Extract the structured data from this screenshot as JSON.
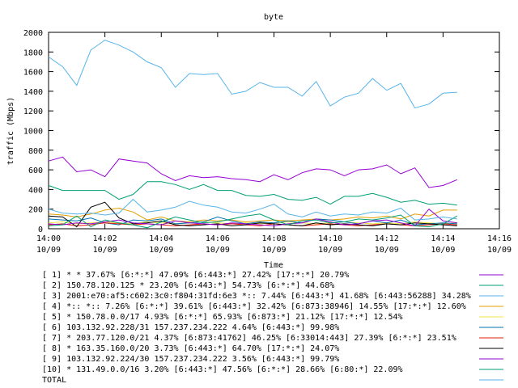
{
  "chart_data": {
    "type": "line",
    "title": "byte",
    "xlabel": "Time",
    "ylabel": "traffic (Mbps)",
    "ylim": [
      0,
      2000
    ],
    "yticks": [
      "0",
      "200",
      "400",
      "600",
      "800",
      "1000",
      "1200",
      "1400",
      "1600",
      "1800",
      "2000"
    ],
    "xlim": [
      "14:00",
      "14:16"
    ],
    "xticks": [
      {
        "time": "14:00",
        "date": "10/09"
      },
      {
        "time": "14:02",
        "date": "10/09"
      },
      {
        "time": "14:04",
        "date": "10/09"
      },
      {
        "time": "14:06",
        "date": "10/09"
      },
      {
        "time": "14:08",
        "date": "10/09"
      },
      {
        "time": "14:10",
        "date": "10/09"
      },
      {
        "time": "14:12",
        "date": "10/09"
      },
      {
        "time": "14:14",
        "date": "10/09"
      },
      {
        "time": "14:16",
        "date": "10/09"
      }
    ],
    "grid": false,
    "legend_position": "bottom",
    "x": [
      "14:00",
      "14:00:30",
      "14:01",
      "14:01:30",
      "14:02",
      "14:02:30",
      "14:03",
      "14:03:30",
      "14:04",
      "14:04:30",
      "14:05",
      "14:05:30",
      "14:06",
      "14:06:30",
      "14:07",
      "14:07:30",
      "14:08",
      "14:08:30",
      "14:09",
      "14:09:30",
      "14:10",
      "14:10:30",
      "14:11",
      "14:11:30",
      "14:12",
      "14:12:30",
      "14:13",
      "14:13:30",
      "14:14",
      "14:14:30"
    ],
    "series": [
      {
        "name": "[ 1] * * 37.67%  [6:*:*] 47.09% [6:443:*] 27.42% [17:*:*] 20.79%",
        "color": "#9400d3",
        "values": [
          690,
          730,
          580,
          600,
          530,
          710,
          690,
          670,
          560,
          490,
          540,
          520,
          530,
          510,
          500,
          480,
          550,
          500,
          570,
          610,
          600,
          540,
          600,
          610,
          650,
          560,
          620,
          420,
          440,
          500
        ]
      },
      {
        "name": "[ 2] 150.78.120.125 * 23.20%  [6:443:*] 54.73% [6:*:*] 44.68%",
        "color": "#009e73",
        "values": [
          440,
          390,
          390,
          390,
          390,
          300,
          350,
          480,
          480,
          450,
          400,
          450,
          390,
          390,
          340,
          330,
          350,
          300,
          290,
          320,
          250,
          330,
          330,
          360,
          320,
          270,
          290,
          250,
          260,
          240
        ]
      },
      {
        "name": "[ 3] 2001:e70:af5:c602:3c0:f804:31fd:6e3 *:: 7.44%  [6:443:*] 41.68% [6:443:56288] 34.28%",
        "color": "#56b4e9",
        "values": [
          1750,
          1650,
          1460,
          1820,
          1920,
          1870,
          1800,
          1700,
          1640,
          1440,
          1580,
          1570,
          1580,
          1370,
          1400,
          1490,
          1440,
          1440,
          1350,
          1500,
          1250,
          1340,
          1380,
          1530,
          1410,
          1480,
          1230,
          1270,
          1380,
          1390
        ]
      },
      {
        "name": "[ 4] *:: *:: 7.26%  [6:*:*] 39.61% [6:443:*] 32.42% [6:873:38946] 14.55% [17:*:*] 12.60%",
        "color": "#e69f00",
        "values": [
          150,
          140,
          120,
          150,
          190,
          210,
          170,
          90,
          120,
          80,
          70,
          90,
          80,
          90,
          70,
          80,
          90,
          80,
          90,
          100,
          90,
          100,
          120,
          110,
          130,
          100,
          150,
          130,
          190,
          190
        ]
      },
      {
        "name": "[ 5] * 150.78.0.0/17 4.93%  [6:*:*] 65.93% [6:873:*] 21.12% [17:*:*] 12.54%",
        "color": "#f0e442",
        "values": [
          60,
          70,
          50,
          60,
          70,
          60,
          50,
          70,
          60,
          50,
          60,
          70,
          60,
          50,
          60,
          50,
          60,
          70,
          60,
          50,
          60,
          70,
          60,
          50,
          60,
          50,
          70,
          60,
          50,
          60
        ]
      },
      {
        "name": "[ 6] 103.132.92.228/31 157.237.234.222 4.64%  [6:443:*] 99.98%",
        "color": "#0072b2",
        "values": [
          100,
          90,
          80,
          110,
          60,
          40,
          90,
          80,
          100,
          50,
          60,
          70,
          120,
          80,
          50,
          70,
          60,
          80,
          60,
          100,
          90,
          70,
          50,
          80,
          60,
          90,
          40,
          50,
          60,
          50
        ]
      },
      {
        "name": "[ 7] * 203.77.120.0/21 4.37%  [6:873:41762] 46.25% [6:33014:443] 27.39% [6:*:*] 23.51%",
        "color": "#e51e10",
        "values": [
          40,
          50,
          30,
          40,
          60,
          50,
          40,
          50,
          40,
          30,
          40,
          50,
          40,
          50,
          40,
          30,
          50,
          40,
          30,
          40,
          50,
          40,
          30,
          40,
          50,
          40,
          30,
          40,
          50,
          40
        ]
      },
      {
        "name": "[ 8] * 163.35.160.0/20 3.73%  [6:443:*] 64.70% [17:*:*] 24.07%",
        "color": "#000000",
        "values": [
          130,
          120,
          20,
          220,
          270,
          110,
          50,
          60,
          80,
          40,
          30,
          40,
          50,
          30,
          40,
          60,
          50,
          40,
          30,
          60,
          40,
          50,
          40,
          30,
          50,
          40,
          60,
          50,
          40,
          30
        ]
      },
      {
        "name": "[ 9] 103.132.92.224/30 157.237.234.222 3.56%  [6:443:*] 99.79%",
        "color": "#9400d3",
        "values": [
          50,
          40,
          60,
          50,
          70,
          90,
          60,
          50,
          40,
          80,
          60,
          50,
          40,
          60,
          50,
          40,
          30,
          50,
          60,
          100,
          70,
          40,
          50,
          80,
          90,
          60,
          30,
          200,
          80,
          60
        ]
      },
      {
        "name": "[10] * 131.49.0.0/16 3.20%  [6:443:*] 47.56% [6:*:*] 28.66% [6:80:*] 22.09%",
        "color": "#009e73",
        "values": [
          30,
          40,
          130,
          20,
          90,
          60,
          40,
          10,
          70,
          120,
          90,
          60,
          70,
          100,
          130,
          150,
          90,
          40,
          80,
          90,
          60,
          70,
          100,
          90,
          110,
          140,
          30,
          20,
          50,
          130
        ]
      },
      {
        "name": "TOTAL",
        "color": "#56b4e9",
        "values": [
          200,
          160,
          150,
          160,
          140,
          160,
          300,
          170,
          190,
          220,
          280,
          240,
          220,
          170,
          160,
          200,
          250,
          150,
          120,
          170,
          130,
          150,
          140,
          170,
          160,
          210,
          90,
          100,
          120,
          100
        ]
      }
    ]
  }
}
